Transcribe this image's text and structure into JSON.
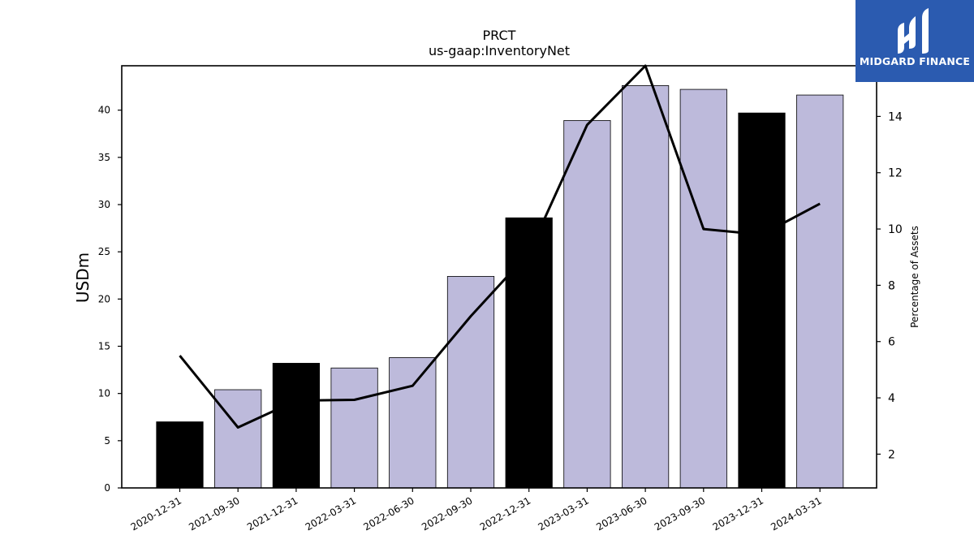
{
  "brand": {
    "name": "MIDGARD FINANCE",
    "logo_icon": "midgard-m-icon",
    "background_color": "#2b5bb0"
  },
  "chart_data": {
    "type": "bar",
    "title": "PRCT",
    "subtitle": "us-gaap:InventoryNet",
    "ylabel": "USDm",
    "y2label": "Percentage of Assets",
    "ylim": [
      0,
      44.7
    ],
    "y2lim": [
      0.8,
      15.8
    ],
    "yticks": [
      0,
      5,
      10,
      15,
      20,
      25,
      30,
      35,
      40
    ],
    "y2ticks": [
      2,
      4,
      6,
      8,
      10,
      12,
      14
    ],
    "grid": false,
    "categories": [
      "2020-12-31",
      "2021-09-30",
      "2021-12-31",
      "2022-03-31",
      "2022-06-30",
      "2022-09-30",
      "2022-12-31",
      "2023-03-31",
      "2023-06-30",
      "2023-09-30",
      "2023-12-31",
      "2024-03-31"
    ],
    "series": [
      {
        "kind": "bar",
        "axis": "left",
        "values": [
          7.0,
          10.4,
          13.2,
          12.7,
          13.8,
          22.4,
          28.6,
          38.9,
          42.6,
          42.2,
          39.7,
          41.6
        ],
        "colors": [
          "#000000",
          "#bdbadb",
          "#000000",
          "#bdbadb",
          "#bdbadb",
          "#bdbadb",
          "#000000",
          "#bdbadb",
          "#bdbadb",
          "#bdbadb",
          "#000000",
          "#bdbadb"
        ]
      },
      {
        "kind": "line",
        "axis": "right",
        "color": "#000000",
        "values": [
          5.5,
          2.95,
          3.9,
          3.93,
          4.43,
          6.9,
          9.15,
          13.7,
          15.8,
          10.0,
          9.8,
          10.9
        ]
      }
    ]
  }
}
